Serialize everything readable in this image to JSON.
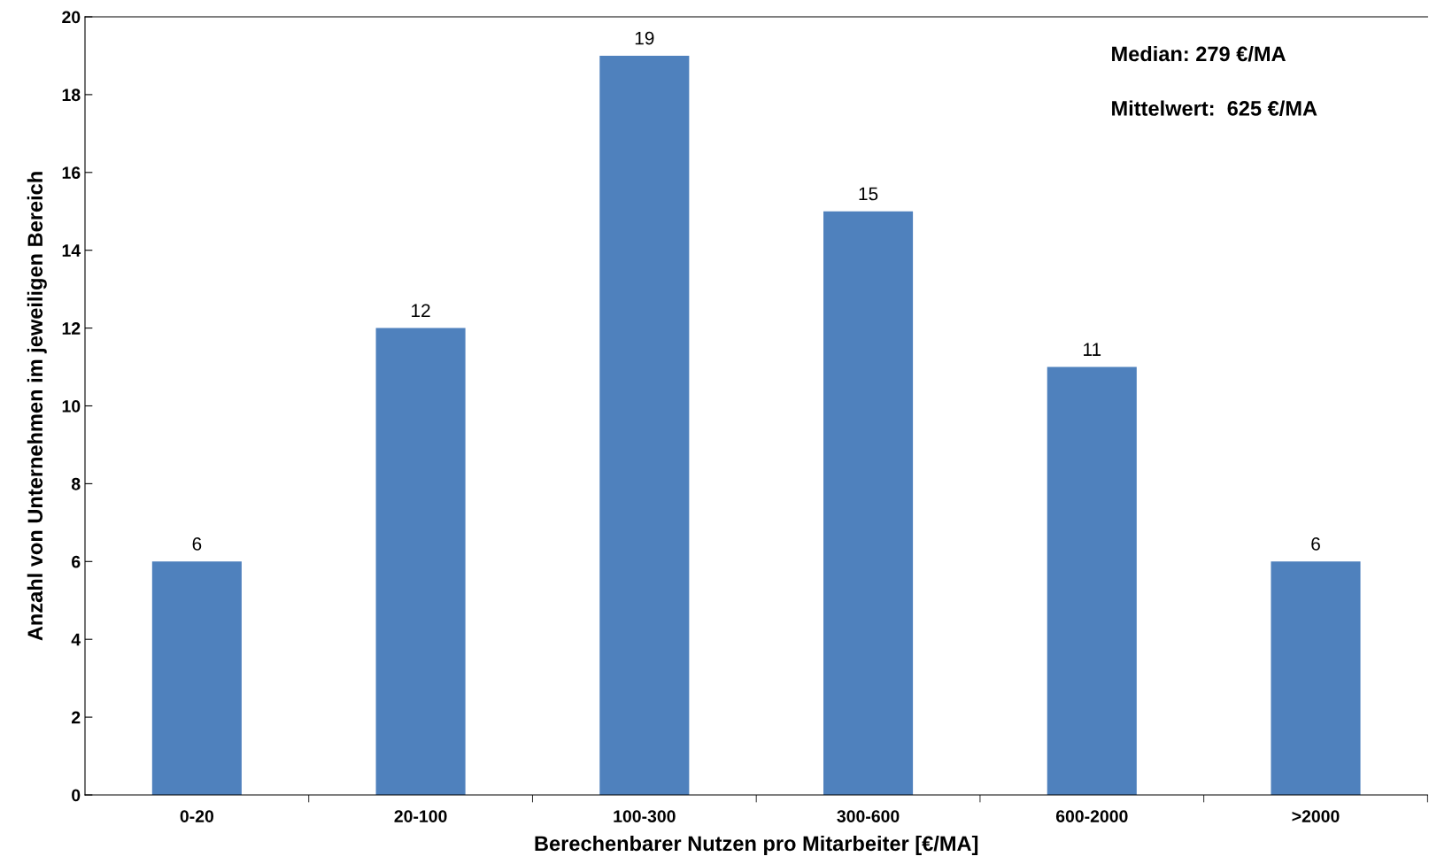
{
  "chart_data": {
    "type": "bar",
    "xlabel": "Berechenbarer Nutzen pro Mitarbeiter [€/MA]",
    "ylabel": "Anzahl von Unternehmen im jeweiligen Bereich",
    "categories": [
      "0-20",
      "20-100",
      "100-300",
      "300-600",
      "600-2000",
      ">2000"
    ],
    "values": [
      6,
      12,
      19,
      15,
      11,
      6
    ],
    "color": "#4f81bd",
    "ylim": [
      0,
      20
    ],
    "yticks": [
      0,
      2,
      4,
      6,
      8,
      10,
      12,
      14,
      16,
      18,
      20
    ],
    "data_labels": true,
    "grid": false,
    "annotations": [
      "Median: 279 €/MA",
      "Mittelwert:  625 €/MA"
    ]
  }
}
